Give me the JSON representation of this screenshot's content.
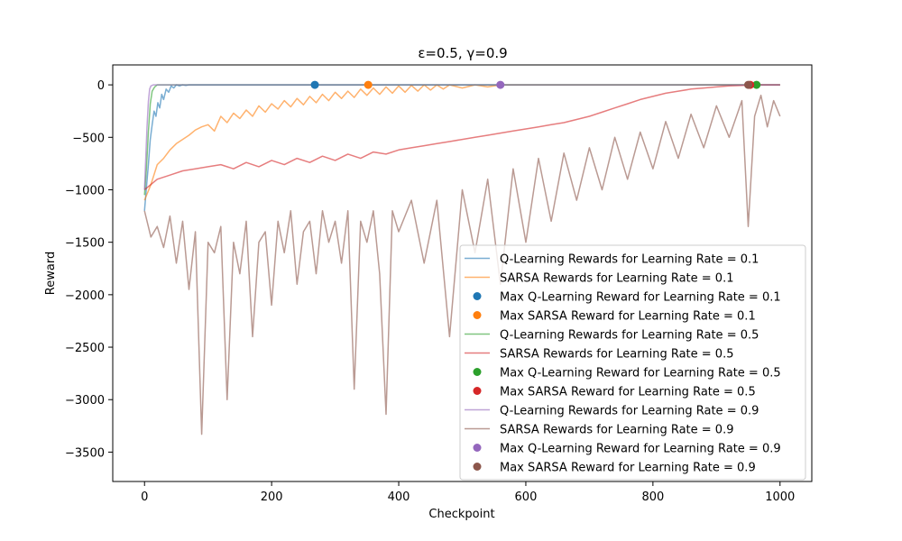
{
  "chart_data": {
    "type": "line",
    "title": "ε=0.5, γ=0.9",
    "xlabel": "Checkpoint",
    "ylabel": "Reward",
    "xlim": [
      -50,
      1050
    ],
    "ylim": [
      -3780,
      190
    ],
    "xticks": [
      0,
      200,
      400,
      600,
      800,
      1000
    ],
    "yticks": [
      0,
      -500,
      -1000,
      -1500,
      -2000,
      -2500,
      -3000,
      -3500
    ],
    "grid": false,
    "legend_position": "lower right",
    "series": [
      {
        "name": "Q-Learning Rewards for Learning Rate = 0.1",
        "kind": "line",
        "color": "#1f77b4",
        "points": [
          [
            0,
            -1200
          ],
          [
            3,
            -980
          ],
          [
            6,
            -760
          ],
          [
            9,
            -520
          ],
          [
            12,
            -380
          ],
          [
            15,
            -250
          ],
          [
            18,
            -300
          ],
          [
            21,
            -170
          ],
          [
            24,
            -220
          ],
          [
            27,
            -90
          ],
          [
            30,
            -140
          ],
          [
            34,
            -40
          ],
          [
            38,
            -70
          ],
          [
            42,
            -10
          ],
          [
            46,
            -30
          ],
          [
            50,
            0
          ],
          [
            55,
            -10
          ],
          [
            60,
            0
          ],
          [
            65,
            -5
          ],
          [
            70,
            0
          ],
          [
            1000,
            0
          ]
        ]
      },
      {
        "name": "SARSA Rewards for Learning Rate = 0.1",
        "kind": "line",
        "color": "#ff7f0e",
        "points": [
          [
            0,
            -1100
          ],
          [
            10,
            -950
          ],
          [
            20,
            -760
          ],
          [
            30,
            -700
          ],
          [
            40,
            -620
          ],
          [
            50,
            -560
          ],
          [
            60,
            -520
          ],
          [
            70,
            -480
          ],
          [
            80,
            -430
          ],
          [
            90,
            -400
          ],
          [
            100,
            -380
          ],
          [
            110,
            -440
          ],
          [
            120,
            -300
          ],
          [
            130,
            -360
          ],
          [
            140,
            -270
          ],
          [
            150,
            -320
          ],
          [
            160,
            -240
          ],
          [
            170,
            -300
          ],
          [
            180,
            -200
          ],
          [
            190,
            -260
          ],
          [
            200,
            -180
          ],
          [
            210,
            -230
          ],
          [
            220,
            -150
          ],
          [
            230,
            -210
          ],
          [
            240,
            -130
          ],
          [
            250,
            -190
          ],
          [
            260,
            -110
          ],
          [
            270,
            -170
          ],
          [
            280,
            -90
          ],
          [
            290,
            -150
          ],
          [
            300,
            -70
          ],
          [
            310,
            -130
          ],
          [
            320,
            -60
          ],
          [
            330,
            -120
          ],
          [
            340,
            -40
          ],
          [
            350,
            -100
          ],
          [
            360,
            -30
          ],
          [
            370,
            -90
          ],
          [
            380,
            -20
          ],
          [
            390,
            -80
          ],
          [
            400,
            -10
          ],
          [
            410,
            -70
          ],
          [
            420,
            -5
          ],
          [
            430,
            -60
          ],
          [
            440,
            0
          ],
          [
            450,
            -50
          ],
          [
            460,
            0
          ],
          [
            470,
            -40
          ],
          [
            480,
            0
          ],
          [
            500,
            -30
          ],
          [
            520,
            0
          ],
          [
            540,
            -20
          ],
          [
            560,
            0
          ],
          [
            600,
            0
          ],
          [
            1000,
            0
          ]
        ]
      },
      {
        "name": "Max Q-Learning Reward for Learning Rate = 0.1",
        "kind": "point",
        "color": "#1f77b4",
        "points": [
          [
            268,
            0
          ]
        ]
      },
      {
        "name": "Max SARSA Reward for Learning Rate = 0.1",
        "kind": "point",
        "color": "#ff7f0e",
        "points": [
          [
            352,
            0
          ]
        ]
      },
      {
        "name": "Q-Learning Rewards for Learning Rate = 0.5",
        "kind": "line",
        "color": "#2ca02c",
        "points": [
          [
            0,
            -1050
          ],
          [
            3,
            -800
          ],
          [
            6,
            -450
          ],
          [
            9,
            -180
          ],
          [
            12,
            -60
          ],
          [
            16,
            -20
          ],
          [
            20,
            0
          ],
          [
            1000,
            0
          ]
        ]
      },
      {
        "name": "SARSA Rewards for Learning Rate = 0.5",
        "kind": "line",
        "color": "#d62728",
        "points": [
          [
            0,
            -1000
          ],
          [
            20,
            -900
          ],
          [
            40,
            -860
          ],
          [
            60,
            -820
          ],
          [
            80,
            -800
          ],
          [
            100,
            -780
          ],
          [
            120,
            -760
          ],
          [
            140,
            -800
          ],
          [
            160,
            -740
          ],
          [
            180,
            -780
          ],
          [
            200,
            -720
          ],
          [
            220,
            -760
          ],
          [
            240,
            -700
          ],
          [
            260,
            -740
          ],
          [
            280,
            -680
          ],
          [
            300,
            -720
          ],
          [
            320,
            -660
          ],
          [
            340,
            -700
          ],
          [
            360,
            -640
          ],
          [
            380,
            -660
          ],
          [
            400,
            -620
          ],
          [
            420,
            -600
          ],
          [
            440,
            -580
          ],
          [
            460,
            -560
          ],
          [
            480,
            -540
          ],
          [
            500,
            -520
          ],
          [
            520,
            -500
          ],
          [
            540,
            -480
          ],
          [
            560,
            -460
          ],
          [
            580,
            -440
          ],
          [
            600,
            -420
          ],
          [
            620,
            -400
          ],
          [
            640,
            -380
          ],
          [
            660,
            -360
          ],
          [
            680,
            -330
          ],
          [
            700,
            -300
          ],
          [
            720,
            -260
          ],
          [
            740,
            -220
          ],
          [
            760,
            -180
          ],
          [
            780,
            -140
          ],
          [
            800,
            -110
          ],
          [
            820,
            -80
          ],
          [
            840,
            -60
          ],
          [
            860,
            -40
          ],
          [
            880,
            -30
          ],
          [
            900,
            -20
          ],
          [
            920,
            -10
          ],
          [
            940,
            -5
          ],
          [
            960,
            0
          ],
          [
            1000,
            0
          ]
        ]
      },
      {
        "name": "Max Q-Learning Reward for Learning Rate = 0.5",
        "kind": "point",
        "color": "#2ca02c",
        "points": [
          [
            963,
            0
          ]
        ]
      },
      {
        "name": "Max SARSA Reward for Learning Rate = 0.5",
        "kind": "point",
        "color": "#d62728",
        "points": [
          [
            953,
            0
          ]
        ]
      },
      {
        "name": "Q-Learning Rewards for Learning Rate = 0.9",
        "kind": "line",
        "color": "#9467bd",
        "points": [
          [
            0,
            -1000
          ],
          [
            2,
            -700
          ],
          [
            4,
            -400
          ],
          [
            6,
            -160
          ],
          [
            8,
            -40
          ],
          [
            10,
            -10
          ],
          [
            14,
            0
          ],
          [
            1000,
            0
          ]
        ]
      },
      {
        "name": "SARSA Rewards for Learning Rate = 0.9",
        "kind": "line",
        "color": "#8c564b",
        "points": [
          [
            0,
            -1200
          ],
          [
            10,
            -1450
          ],
          [
            20,
            -1350
          ],
          [
            30,
            -1550
          ],
          [
            40,
            -1250
          ],
          [
            50,
            -1700
          ],
          [
            60,
            -1300
          ],
          [
            70,
            -1950
          ],
          [
            80,
            -1400
          ],
          [
            90,
            -3330
          ],
          [
            100,
            -1500
          ],
          [
            110,
            -1600
          ],
          [
            120,
            -1350
          ],
          [
            130,
            -3000
          ],
          [
            140,
            -1500
          ],
          [
            150,
            -1800
          ],
          [
            160,
            -1300
          ],
          [
            170,
            -2400
          ],
          [
            180,
            -1500
          ],
          [
            190,
            -1400
          ],
          [
            200,
            -2100
          ],
          [
            210,
            -1300
          ],
          [
            220,
            -1600
          ],
          [
            230,
            -1200
          ],
          [
            240,
            -1900
          ],
          [
            250,
            -1400
          ],
          [
            260,
            -1300
          ],
          [
            270,
            -1800
          ],
          [
            280,
            -1200
          ],
          [
            290,
            -1500
          ],
          [
            300,
            -1300
          ],
          [
            310,
            -1700
          ],
          [
            320,
            -1200
          ],
          [
            330,
            -2900
          ],
          [
            340,
            -1300
          ],
          [
            350,
            -1500
          ],
          [
            360,
            -1200
          ],
          [
            370,
            -1800
          ],
          [
            380,
            -3140
          ],
          [
            390,
            -1200
          ],
          [
            400,
            -1400
          ],
          [
            420,
            -1100
          ],
          [
            440,
            -1700
          ],
          [
            460,
            -1100
          ],
          [
            480,
            -2400
          ],
          [
            500,
            -1000
          ],
          [
            520,
            -1600
          ],
          [
            540,
            -900
          ],
          [
            560,
            -1900
          ],
          [
            580,
            -800
          ],
          [
            600,
            -1500
          ],
          [
            620,
            -700
          ],
          [
            640,
            -1300
          ],
          [
            660,
            -650
          ],
          [
            680,
            -1100
          ],
          [
            700,
            -600
          ],
          [
            720,
            -1000
          ],
          [
            740,
            -500
          ],
          [
            760,
            -900
          ],
          [
            780,
            -450
          ],
          [
            800,
            -800
          ],
          [
            820,
            -350
          ],
          [
            840,
            -700
          ],
          [
            860,
            -280
          ],
          [
            880,
            -600
          ],
          [
            900,
            -200
          ],
          [
            920,
            -500
          ],
          [
            940,
            -150
          ],
          [
            950,
            -1350
          ],
          [
            960,
            -300
          ],
          [
            970,
            -100
          ],
          [
            980,
            -400
          ],
          [
            990,
            -150
          ],
          [
            1000,
            -300
          ]
        ]
      },
      {
        "name": "Max Q-Learning Reward for Learning Rate = 0.9",
        "kind": "point",
        "color": "#9467bd",
        "points": [
          [
            560,
            0
          ]
        ]
      },
      {
        "name": "Max SARSA Reward for Learning Rate = 0.9",
        "kind": "point",
        "color": "#8c564b",
        "points": [
          [
            950,
            0
          ]
        ]
      }
    ]
  }
}
